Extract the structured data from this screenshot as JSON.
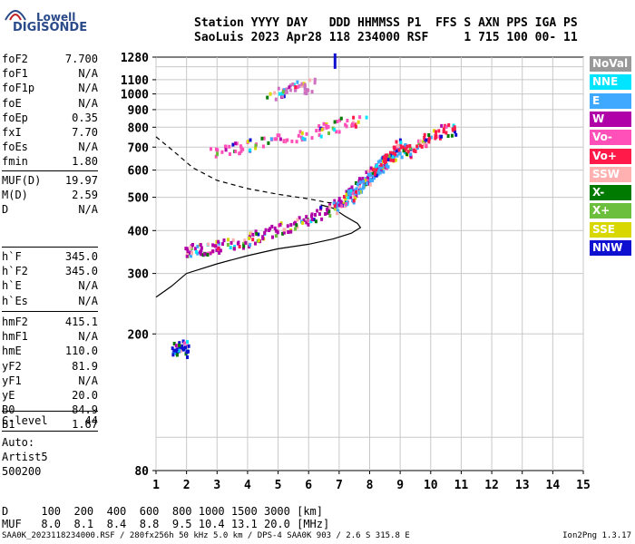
{
  "logo": {
    "line1": "Lowell",
    "line2": "DIGISONDE"
  },
  "header": {
    "line1": "Station YYYY DAY   DDD HHMMSS P1  FFS S AXN PPS IGA PS",
    "line2": "SaoLuis 2023 Apr28 118 234000 RSF     1 715 100 00- 11"
  },
  "params_group1": [
    {
      "name": "foF2",
      "value": "7.700"
    },
    {
      "name": "foF1",
      "value": "N/A"
    },
    {
      "name": "foF1p",
      "value": "N/A"
    },
    {
      "name": "foE",
      "value": "N/A"
    },
    {
      "name": "foEp",
      "value": "0.35"
    },
    {
      "name": "fxI",
      "value": "7.70"
    },
    {
      "name": "foEs",
      "value": "N/A"
    },
    {
      "name": "fmin",
      "value": "1.80"
    }
  ],
  "params_group2": [
    {
      "name": "MUF(D)",
      "value": "19.97"
    },
    {
      "name": "M(D)",
      "value": "2.59"
    },
    {
      "name": "D",
      "value": "N/A"
    }
  ],
  "params_group3": [
    {
      "name": "h`F",
      "value": "345.0"
    },
    {
      "name": "h`F2",
      "value": "345.0"
    },
    {
      "name": "h`E",
      "value": "N/A"
    },
    {
      "name": "h`Es",
      "value": "N/A"
    }
  ],
  "params_group4": [
    {
      "name": "hmF2",
      "value": "415.1"
    },
    {
      "name": "hmF1",
      "value": "N/A"
    },
    {
      "name": "hmE",
      "value": "110.0"
    },
    {
      "name": "yF2",
      "value": "81.9"
    },
    {
      "name": "yF1",
      "value": "N/A"
    },
    {
      "name": "yE",
      "value": "20.0"
    },
    {
      "name": "B0",
      "value": "84.9"
    },
    {
      "name": "B1",
      "value": "1.67"
    }
  ],
  "params_group5": [
    {
      "name": "C-level",
      "value": "44"
    }
  ],
  "auto": {
    "label": "Auto:",
    "artist": "Artist5",
    "code": "500200"
  },
  "muf_table": {
    "d_row": "D     100  200  400  600  800 1000 1500 3000 [km]",
    "muf_row": "MUF   8.0  8.1  8.4  8.8  9.5 10.4 13.1 20.0 [MHz]"
  },
  "footer": {
    "info": "SAA0K_2023118234000.RSF / 280fx256h 50 kHz 5.0 km / DPS-4 SAA0K 903 / 2.6 S 315.8 E",
    "version": "Ion2Png 1.3.17"
  },
  "legend": [
    {
      "label": "NoVal",
      "color": "#999999"
    },
    {
      "label": "NNE",
      "color": "#00e5ff"
    },
    {
      "label": "E",
      "color": "#3fa8ff"
    },
    {
      "label": "W",
      "color": "#b000a8"
    },
    {
      "label": "Vo-",
      "color": "#ff4fb8"
    },
    {
      "label": "Vo+",
      "color": "#ff1a4a"
    },
    {
      "label": "SSW",
      "color": "#ffb0b0"
    },
    {
      "label": "X-",
      "color": "#007a00"
    },
    {
      "label": "X+",
      "color": "#6cbf3c"
    },
    {
      "label": "SSE",
      "color": "#d8d800"
    },
    {
      "label": "NNW",
      "color": "#1010d0"
    }
  ],
  "chart_data": {
    "type": "scatter",
    "title": "",
    "xlabel": "",
    "ylabel": "",
    "xlim": [
      1,
      15
    ],
    "ylim": [
      80,
      1280
    ],
    "x_ticks": [
      1,
      2,
      3,
      4,
      5,
      6,
      7,
      8,
      9,
      10,
      11,
      12,
      13,
      14,
      15
    ],
    "y_ticks": [
      80,
      200,
      300,
      400,
      500,
      600,
      700,
      800,
      900,
      1000,
      1100,
      1280
    ],
    "y_scale": "log",
    "grid": true,
    "traces": [
      {
        "name": "O-mode F2 trace",
        "color": "#b000a8",
        "points": [
          [
            1.9,
            352
          ],
          [
            2.2,
            355
          ],
          [
            2.6,
            358
          ],
          [
            3.0,
            362
          ],
          [
            3.5,
            370
          ],
          [
            4.0,
            380
          ],
          [
            4.5,
            392
          ],
          [
            5.0,
            405
          ],
          [
            5.5,
            420
          ],
          [
            6.0,
            440
          ],
          [
            6.5,
            462
          ],
          [
            7.0,
            490
          ],
          [
            7.3,
            510
          ],
          [
            7.6,
            540
          ],
          [
            7.9,
            575
          ],
          [
            8.2,
            610
          ],
          [
            8.5,
            640
          ]
        ]
      },
      {
        "name": "X-mode F2 trace",
        "color": "#3fa8ff",
        "points": [
          [
            6.8,
            470
          ],
          [
            7.2,
            495
          ],
          [
            7.5,
            520
          ],
          [
            7.8,
            555
          ],
          [
            8.1,
            600
          ],
          [
            8.4,
            635
          ],
          [
            8.8,
            670
          ],
          [
            9.2,
            700
          ]
        ]
      },
      {
        "name": "2F second hop trace",
        "color": "#ff4fb8",
        "points": [
          [
            2.8,
            680
          ],
          [
            3.5,
            700
          ],
          [
            4.2,
            722
          ],
          [
            5.0,
            748
          ],
          [
            5.8,
            772
          ],
          [
            6.5,
            800
          ],
          [
            7.2,
            828
          ],
          [
            7.8,
            860
          ]
        ]
      },
      {
        "name": "Spread echoes",
        "color": "#ff1a4a",
        "points": [
          [
            8.0,
            600
          ],
          [
            8.5,
            650
          ],
          [
            8.8,
            690
          ],
          [
            9.0,
            720
          ],
          [
            9.3,
            680
          ],
          [
            9.7,
            720
          ],
          [
            10.0,
            760
          ],
          [
            10.4,
            790
          ],
          [
            10.8,
            800
          ]
        ]
      },
      {
        "name": "3F third hop trace",
        "color": "#d070c0",
        "points": [
          [
            4.6,
            1000
          ],
          [
            5.2,
            1030
          ],
          [
            5.8,
            1060
          ],
          [
            6.2,
            1075
          ]
        ]
      },
      {
        "name": "Low E echoes",
        "color": "#1010d0",
        "points": [
          [
            1.5,
            180
          ],
          [
            1.7,
            185
          ],
          [
            1.9,
            190
          ],
          [
            2.0,
            178
          ]
        ]
      }
    ],
    "profile_solid": [
      [
        1,
        256
      ],
      [
        1.5,
        275
      ],
      [
        2,
        300
      ],
      [
        3,
        320
      ],
      [
        4,
        338
      ],
      [
        5,
        354
      ],
      [
        6,
        365
      ],
      [
        6.8,
        378
      ],
      [
        7.4,
        393
      ],
      [
        7.7,
        408
      ],
      [
        7.6,
        420
      ],
      [
        7.2,
        440
      ],
      [
        6.8,
        465
      ],
      [
        6.4,
        475
      ]
    ],
    "profile_dashed": [
      [
        1,
        750
      ],
      [
        1.5,
        690
      ],
      [
        2.2,
        610
      ],
      [
        3,
        560
      ],
      [
        4,
        530
      ],
      [
        5,
        510
      ],
      [
        6,
        495
      ],
      [
        6.6,
        483
      ],
      [
        7.0,
        480
      ]
    ],
    "marker": {
      "x": 6.85,
      "y": 1250,
      "color": "#1010d0"
    }
  }
}
